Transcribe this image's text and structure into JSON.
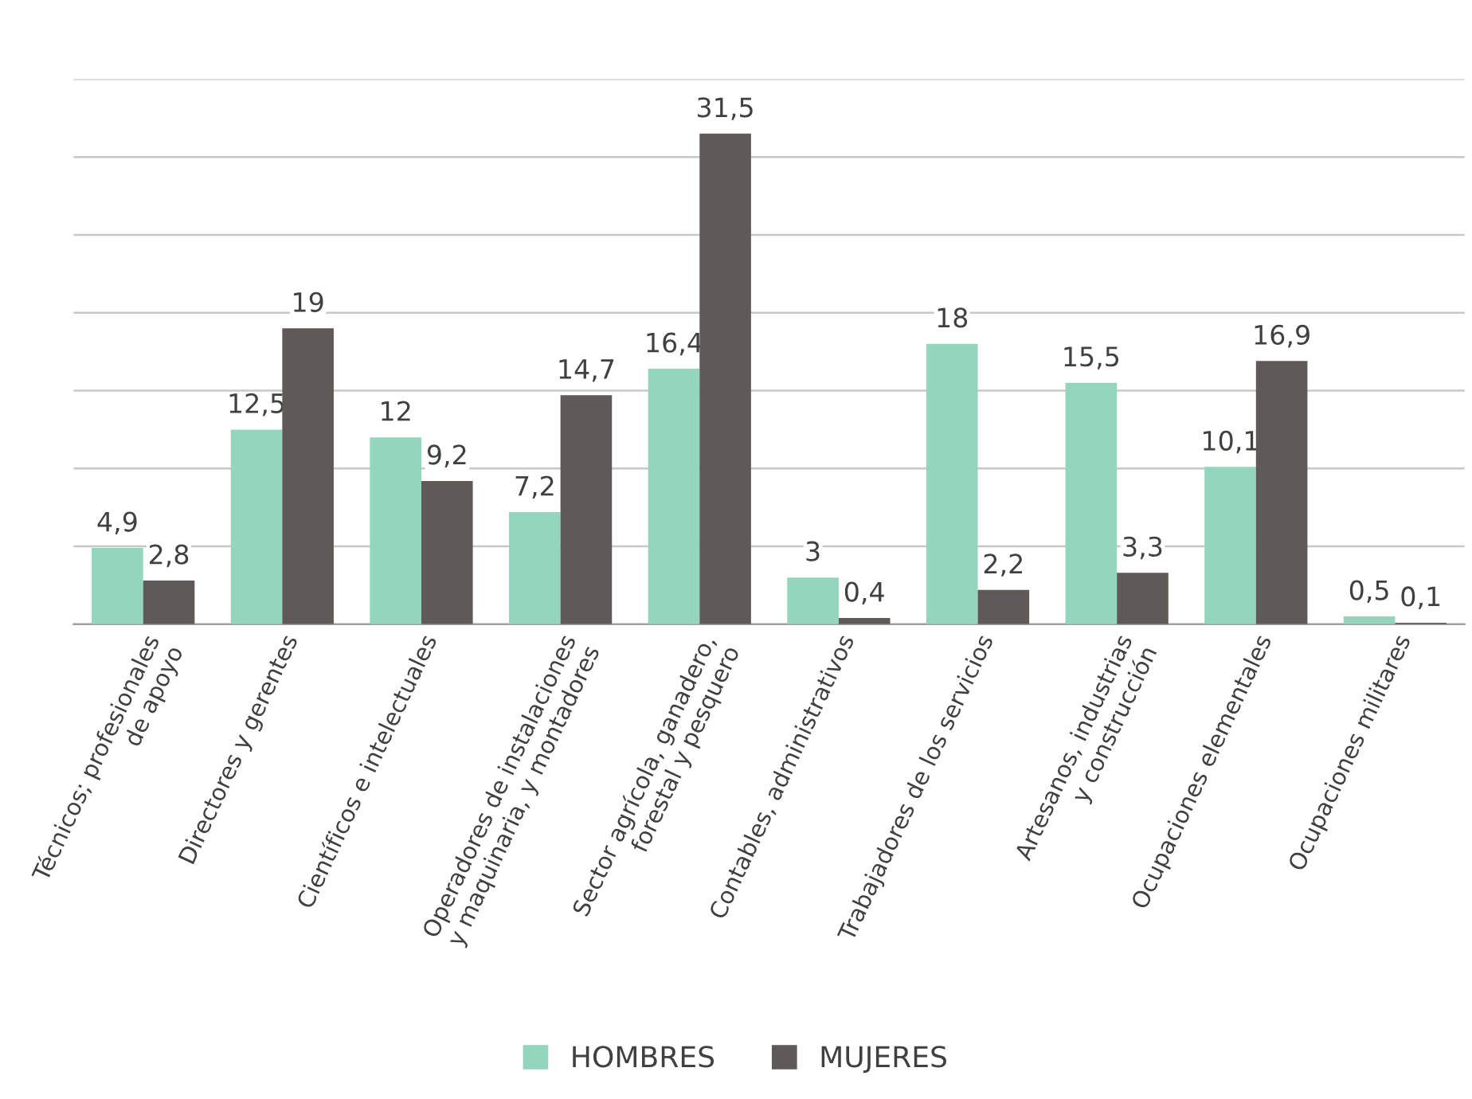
{
  "chart_data": {
    "type": "bar",
    "categories": [
      "Técnicos; profesionales\nde apoyo",
      "Directores y gerentes",
      "Científicos e intelectuales",
      "Operadores de instalaciones\ny maquinaria, y montadores",
      "Sector agrícola, ganadero,\nforestal y pesquero",
      "Contables, administrativos",
      "Trabajadores de los servicios",
      "Artesanos, industrias\ny construcción",
      "Ocupaciones elementales",
      "Ocupaciones militares"
    ],
    "series": [
      {
        "name": "HOMBRES",
        "color": "#93d5bd",
        "values": [
          4.9,
          12.5,
          12,
          7.2,
          16.4,
          3,
          18,
          15.5,
          10.1,
          0.5
        ],
        "value_labels": [
          "4,9",
          "12,5",
          "12",
          "7,2",
          "16,4",
          "3",
          "18",
          "15,5",
          "10,1",
          "0,5"
        ]
      },
      {
        "name": "MUJERES",
        "color": "#5f5a57",
        "values": [
          2.8,
          19,
          9.2,
          14.7,
          31.5,
          0.4,
          2.2,
          3.3,
          16.9,
          0.1
        ],
        "value_labels": [
          "2,8",
          "19",
          "9,2",
          "14,7",
          "31,5",
          "0,4",
          "2,2",
          "3,3",
          "16,9",
          "0,1"
        ]
      }
    ],
    "ylim": [
      0,
      35
    ],
    "yticks": [
      {
        "value": 0,
        "label": null
      },
      {
        "value": 5,
        "label": null
      },
      {
        "value": 10,
        "label": null
      },
      {
        "value": 15,
        "label": null
      },
      {
        "value": 20,
        "label": null
      },
      {
        "value": 25,
        "label": null
      },
      {
        "value": 30,
        "label": null
      },
      {
        "value": 35,
        "label": null
      }
    ],
    "tick_labels": "x",
    "grid": "y",
    "legend": "bottom"
  }
}
